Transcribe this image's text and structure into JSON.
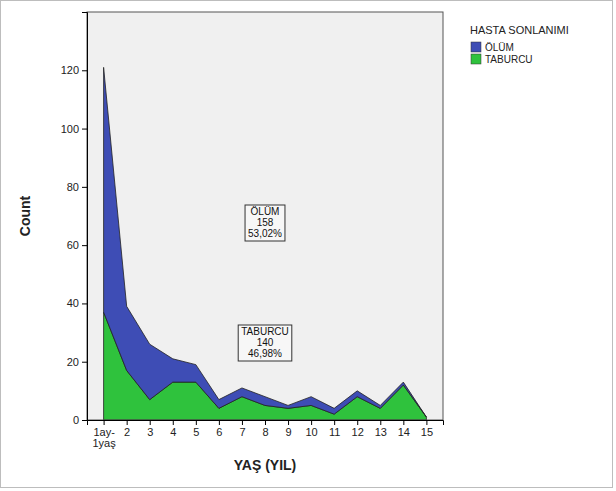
{
  "chart_data": {
    "type": "area",
    "stacked": true,
    "x_label": "YAŞ (YIL)",
    "y_label": "Count",
    "categories": [
      "1ay-\n1yaş",
      "2",
      "3",
      "4",
      "5",
      "6",
      "7",
      "8",
      "9",
      "10",
      "11",
      "12",
      "13",
      "14",
      "15"
    ],
    "series": [
      {
        "name": "TABURCU",
        "color": "#2fc23d",
        "values": [
          37,
          17,
          7,
          13,
          13,
          4,
          8,
          5,
          4,
          5,
          2,
          8,
          4,
          12,
          1
        ]
      },
      {
        "name": "ÖLÜM",
        "color": "#3e4db5",
        "values": [
          84,
          22,
          19,
          8,
          6,
          3,
          3,
          3,
          1,
          3,
          2,
          2,
          1,
          1,
          0
        ]
      }
    ],
    "ylim": [
      0,
      140
    ],
    "yticks": [
      0,
      20,
      40,
      60,
      80,
      100,
      120
    ],
    "grid": false,
    "legend": "top-right",
    "legend_title": "HASTA SONLANIMI",
    "annotations": [
      {
        "lines": [
          "ÖLÜM",
          "158",
          "53,02%"
        ]
      },
      {
        "lines": [
          "TABURCU",
          "140",
          "46,98%"
        ]
      }
    ]
  }
}
